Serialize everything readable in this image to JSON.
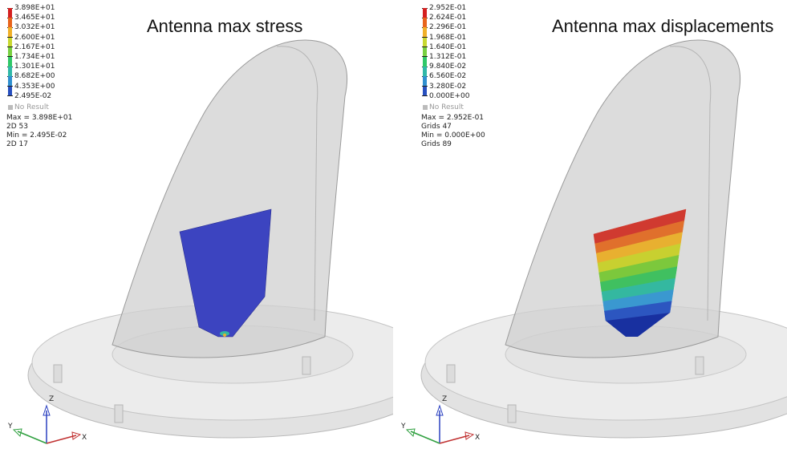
{
  "panels": [
    {
      "title": "Antenna max stress",
      "legend": {
        "values": [
          "3.898E+01",
          "3.465E+01",
          "3.032E+01",
          "2.600E+01",
          "2.167E+01",
          "1.734E+01",
          "1.301E+01",
          "8.682E+00",
          "4.353E+00",
          "2.495E-02"
        ],
        "colors": [
          "#d42020",
          "#e8641c",
          "#f0b028",
          "#c8d830",
          "#78d040",
          "#30c868",
          "#30b8a8",
          "#3090d0",
          "#2850c0",
          "#1830a0"
        ],
        "no_result": "No Result",
        "max_line": "Max = 3.898E+01",
        "max_loc": "2D 53",
        "min_line": "Min = 2.495E-02",
        "min_loc": "2D 17"
      },
      "axes": {
        "z": "Z",
        "y": "Y",
        "x": "X"
      },
      "plate_colors": [
        "#3c44c0"
      ]
    },
    {
      "title": "Antenna max displacements",
      "legend": {
        "values": [
          "2.952E-01",
          "2.624E-01",
          "2.296E-01",
          "1.968E-01",
          "1.640E-01",
          "1.312E-01",
          "9.840E-02",
          "6.560E-02",
          "3.280E-02",
          "0.000E+00"
        ],
        "colors": [
          "#d42020",
          "#e8641c",
          "#f0b028",
          "#c8d830",
          "#78d040",
          "#30c868",
          "#30b8a8",
          "#3090d0",
          "#2850c0",
          "#1830a0"
        ],
        "no_result": "No Result",
        "max_line": "Max = 2.952E-01",
        "max_loc": "Grids 47",
        "min_line": "Min = 0.000E+00",
        "min_loc": "Grids 89"
      },
      "axes": {
        "z": "Z",
        "y": "Y",
        "x": "X"
      },
      "plate_colors": [
        "#d03a30",
        "#e0702c",
        "#e8b030",
        "#c8d030",
        "#7cc83c",
        "#40c060",
        "#34b8a0",
        "#3a98d0",
        "#2c56c0"
      ]
    }
  ]
}
